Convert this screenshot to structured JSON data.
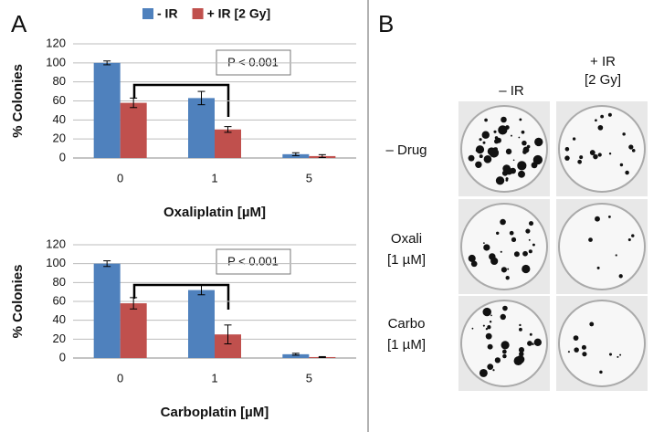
{
  "panel_labels": [
    "A",
    "B"
  ],
  "chart_data": [
    {
      "type": "bar",
      "categories": [
        "0",
        "1",
        "5"
      ],
      "series": [
        {
          "name": "- IR",
          "color": "#4f81bd",
          "values": [
            100,
            63,
            4
          ],
          "errors": [
            2,
            7,
            1.5
          ]
        },
        {
          "name": "+ IR [2 Gy]",
          "color": "#c0504d",
          "values": [
            58,
            30,
            2
          ],
          "errors": [
            5,
            3,
            1.5
          ]
        }
      ],
      "ylim": [
        0,
        120
      ],
      "yticks": [
        0,
        20,
        40,
        60,
        80,
        100,
        120
      ],
      "grid": true,
      "ylabel": "% Colonies",
      "xlabel": "Oxaliplatin [µM]",
      "annotation": "P < 0.001"
    },
    {
      "type": "bar",
      "categories": [
        "0",
        "1",
        "5"
      ],
      "series": [
        {
          "color": "#4f81bd",
          "values": [
            100,
            72,
            4
          ],
          "errors": [
            3,
            5,
            1
          ]
        },
        {
          "color": "#c0504d",
          "values": [
            58,
            25,
            1
          ],
          "errors": [
            6,
            10,
            0.5
          ]
        }
      ],
      "ylim": [
        0,
        120
      ],
      "yticks": [
        0,
        20,
        40,
        60,
        80,
        100,
        120
      ],
      "grid": true,
      "ylabel": "% Colonies",
      "xlabel": "Carboplatin [µM]",
      "annotation": "P < 0.001"
    }
  ],
  "photo_panel": {
    "columns": [
      [
        "– IR"
      ],
      [
        "+ IR",
        "[2 Gy]"
      ]
    ],
    "rows": [
      [
        "– Drug"
      ],
      [
        "Oxali",
        "[1 µM]"
      ],
      [
        "Carbo",
        "[1 µM]"
      ]
    ]
  }
}
